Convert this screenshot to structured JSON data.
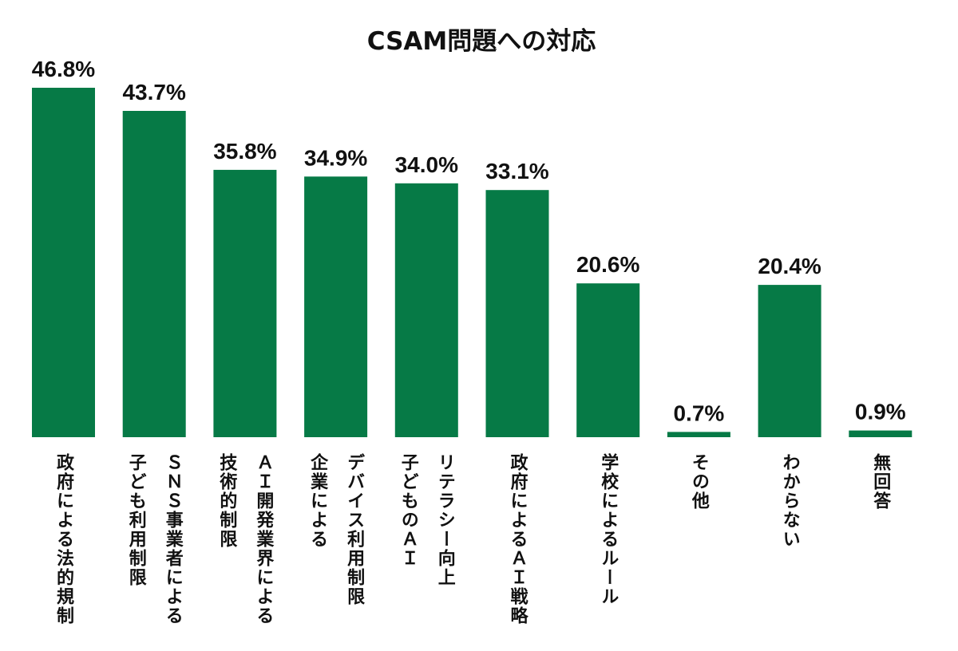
{
  "chart_data": {
    "type": "bar",
    "title": "CSAM問題への対応",
    "xlabel": "",
    "ylabel": "",
    "ylim": [
      0,
      50
    ],
    "grid": false,
    "legend": "none",
    "bar_color": "#067a46",
    "categories": [
      [
        "政府による法的規制"
      ],
      [
        "ＳＮＳ事業者による",
        "子ども利用制限"
      ],
      [
        "ＡＩ開発業界による",
        "技術的制限"
      ],
      [
        "デバイス利用制限",
        "企業による"
      ],
      [
        "リテラシー向上",
        "子どものＡＩ"
      ],
      [
        "政府によるＡＩ戦略"
      ],
      [
        "学校によるルール"
      ],
      [
        "その他"
      ],
      [
        "わからない"
      ],
      [
        "無回答"
      ]
    ],
    "values": [
      46.8,
      43.7,
      35.8,
      34.9,
      34.0,
      33.1,
      20.6,
      0.7,
      20.4,
      0.9
    ],
    "value_labels": [
      "46.8%",
      "43.7%",
      "35.8%",
      "34.9%",
      "34.0%",
      "33.1%",
      "20.6%",
      "0.7%",
      "20.4%",
      "0.9%"
    ]
  }
}
